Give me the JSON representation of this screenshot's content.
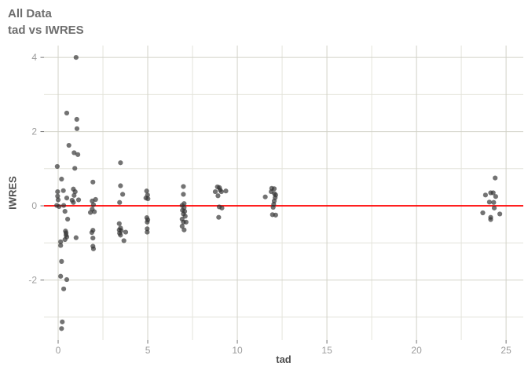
{
  "chart_data": {
    "type": "scatter",
    "title": "All Data",
    "subtitle": "tad vs IWRES",
    "xlabel": "tad",
    "ylabel": "IWRES",
    "xlim": [
      -0.79,
      25.96
    ],
    "ylim": [
      -3.62,
      4.32
    ],
    "x_major_ticks": [
      0,
      5,
      10,
      15,
      20,
      25
    ],
    "x_minor_ticks": [
      2.5,
      7.5,
      12.5,
      17.5,
      22.5
    ],
    "y_major_ticks": [
      4,
      2,
      0,
      -2
    ],
    "y_minor_ticks": [
      3,
      1,
      -1,
      -3
    ],
    "grid": true,
    "legend_position": "none",
    "reference_line": {
      "y": 0
    },
    "points": [
      [
        1.0,
        4.0
      ],
      [
        0.48,
        2.5
      ],
      [
        1.04,
        2.33
      ],
      [
        1.05,
        2.08
      ],
      [
        0.6,
        1.63
      ],
      [
        0.89,
        1.43
      ],
      [
        1.1,
        1.38
      ],
      [
        -0.05,
        1.06
      ],
      [
        0.93,
        1.01
      ],
      [
        0.19,
        0.72
      ],
      [
        1.94,
        0.64
      ],
      [
        -0.03,
        0.38
      ],
      [
        0.29,
        0.41
      ],
      [
        0.85,
        0.45
      ],
      [
        0.95,
        0.38
      ],
      [
        -0.03,
        0.26
      ],
      [
        0.0,
        0.16
      ],
      [
        0.48,
        0.21
      ],
      [
        0.89,
        0.28
      ],
      [
        0.78,
        0.15
      ],
      [
        0.85,
        0.09
      ],
      [
        1.14,
        0.16
      ],
      [
        -0.08,
        0.01
      ],
      [
        0.31,
        0.01
      ],
      [
        0.05,
        -0.02
      ],
      [
        0.38,
        -0.15
      ],
      [
        0.53,
        -0.36
      ],
      [
        0.41,
        -0.68
      ],
      [
        0.44,
        -0.73
      ],
      [
        0.44,
        -0.79
      ],
      [
        0.48,
        -0.84
      ],
      [
        0.38,
        -0.91
      ],
      [
        1.0,
        -0.86
      ],
      [
        0.14,
        -0.97
      ],
      [
        0.14,
        -1.07
      ],
      [
        0.19,
        -1.5
      ],
      [
        0.14,
        -1.9
      ],
      [
        0.48,
        -1.99
      ],
      [
        0.31,
        -2.24
      ],
      [
        0.23,
        -3.13
      ],
      [
        0.19,
        -3.31
      ],
      [
        1.9,
        0.13
      ],
      [
        2.09,
        0.17
      ],
      [
        1.97,
        0.03
      ],
      [
        1.9,
        -0.09
      ],
      [
        2.02,
        -0.16
      ],
      [
        1.8,
        -0.18
      ],
      [
        1.94,
        -0.66
      ],
      [
        1.88,
        -0.72
      ],
      [
        1.94,
        -0.87
      ],
      [
        1.94,
        -1.09
      ],
      [
        1.97,
        -1.16
      ],
      [
        3.48,
        1.16
      ],
      [
        3.48,
        0.54
      ],
      [
        3.6,
        0.31
      ],
      [
        3.43,
        0.09
      ],
      [
        3.41,
        -0.48
      ],
      [
        3.48,
        -0.6
      ],
      [
        3.41,
        -0.65
      ],
      [
        3.52,
        -0.67
      ],
      [
        3.43,
        -0.74
      ],
      [
        3.77,
        -0.71
      ],
      [
        3.48,
        -0.79
      ],
      [
        3.67,
        -0.94
      ],
      [
        4.94,
        0.4
      ],
      [
        4.99,
        0.29
      ],
      [
        4.9,
        0.21
      ],
      [
        5.01,
        0.19
      ],
      [
        4.95,
        -0.32
      ],
      [
        5.0,
        -0.38
      ],
      [
        4.97,
        -0.44
      ],
      [
        4.97,
        -0.62
      ],
      [
        4.97,
        -0.71
      ],
      [
        6.99,
        0.52
      ],
      [
        6.99,
        0.31
      ],
      [
        7.03,
        0.06
      ],
      [
        6.92,
        0.01
      ],
      [
        7.03,
        -0.05
      ],
      [
        6.94,
        -0.12
      ],
      [
        7.06,
        -0.15
      ],
      [
        6.99,
        -0.22
      ],
      [
        7.09,
        -0.28
      ],
      [
        6.92,
        -0.36
      ],
      [
        6.99,
        -0.44
      ],
      [
        7.14,
        -0.44
      ],
      [
        6.92,
        -0.55
      ],
      [
        7.03,
        -0.65
      ],
      [
        8.77,
        0.38
      ],
      [
        8.89,
        0.51
      ],
      [
        9.0,
        0.49
      ],
      [
        9.04,
        0.43
      ],
      [
        9.11,
        0.38
      ],
      [
        9.36,
        0.4
      ],
      [
        8.92,
        0.27
      ],
      [
        8.99,
        -0.03
      ],
      [
        9.14,
        -0.06
      ],
      [
        8.96,
        -0.31
      ],
      [
        11.56,
        0.24
      ],
      [
        11.92,
        0.47
      ],
      [
        12.06,
        0.46
      ],
      [
        11.89,
        0.38
      ],
      [
        12.07,
        0.33
      ],
      [
        12.14,
        0.29
      ],
      [
        12.11,
        0.22
      ],
      [
        12.06,
        0.13
      ],
      [
        12.03,
        0.04
      ],
      [
        12.0,
        -0.04
      ],
      [
        11.96,
        -0.24
      ],
      [
        12.14,
        -0.25
      ],
      [
        24.39,
        0.75
      ],
      [
        23.85,
        0.29
      ],
      [
        24.14,
        0.35
      ],
      [
        24.28,
        0.35
      ],
      [
        24.42,
        0.25
      ],
      [
        24.07,
        0.1
      ],
      [
        24.31,
        0.09
      ],
      [
        24.34,
        -0.06
      ],
      [
        23.7,
        -0.19
      ],
      [
        24.65,
        -0.22
      ],
      [
        24.14,
        -0.31
      ],
      [
        24.14,
        -0.37
      ]
    ]
  },
  "colors": {
    "background": "#ffffff",
    "grid_major": "#d2d2c8",
    "grid_minor": "#e4e4db",
    "reference_line": "#ff0000",
    "point_fill": "#303030",
    "tick_mark": "#737373",
    "tick_label": "#9c9c9c",
    "axis_title": "#4f4f4f",
    "plot_title": "#6e6e6e"
  }
}
